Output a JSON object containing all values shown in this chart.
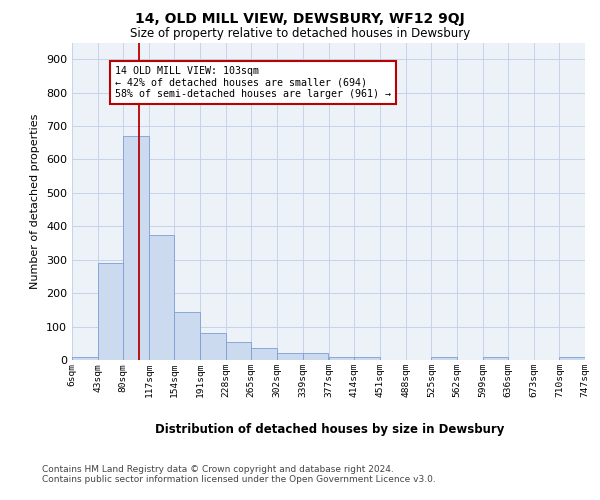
{
  "title": "14, OLD MILL VIEW, DEWSBURY, WF12 9QJ",
  "subtitle": "Size of property relative to detached houses in Dewsbury",
  "xlabel": "Distribution of detached houses by size in Dewsbury",
  "ylabel": "Number of detached properties",
  "bar_edges": [
    6,
    43,
    80,
    117,
    154,
    191,
    228,
    265,
    302,
    339,
    377,
    414,
    451,
    488,
    525,
    562,
    599,
    636,
    673,
    710,
    747
  ],
  "bar_heights": [
    10,
    290,
    670,
    375,
    145,
    80,
    55,
    35,
    20,
    20,
    10,
    10,
    0,
    0,
    10,
    0,
    10,
    0,
    0,
    10
  ],
  "bar_color": "#ccdaf0",
  "bar_edge_color": "#7a9fd4",
  "grid_color": "#c5d3e8",
  "bg_color": "#edf1f8",
  "vline_x": 103,
  "vline_color": "#bb0000",
  "annotation_text": "14 OLD MILL VIEW: 103sqm\n← 42% of detached houses are smaller (694)\n58% of semi-detached houses are larger (961) →",
  "annotation_box_color": "white",
  "annotation_box_edge": "#bb0000",
  "ylim": [
    0,
    950
  ],
  "yticks": [
    0,
    100,
    200,
    300,
    400,
    500,
    600,
    700,
    800,
    900
  ],
  "footer_line1": "Contains HM Land Registry data © Crown copyright and database right 2024.",
  "footer_line2": "Contains public sector information licensed under the Open Government Licence v3.0.",
  "tick_labels": [
    "6sqm",
    "43sqm",
    "80sqm",
    "117sqm",
    "154sqm",
    "191sqm",
    "228sqm",
    "265sqm",
    "302sqm",
    "339sqm",
    "377sqm",
    "414sqm",
    "451sqm",
    "488sqm",
    "525sqm",
    "562sqm",
    "599sqm",
    "636sqm",
    "673sqm",
    "710sqm",
    "747sqm"
  ]
}
